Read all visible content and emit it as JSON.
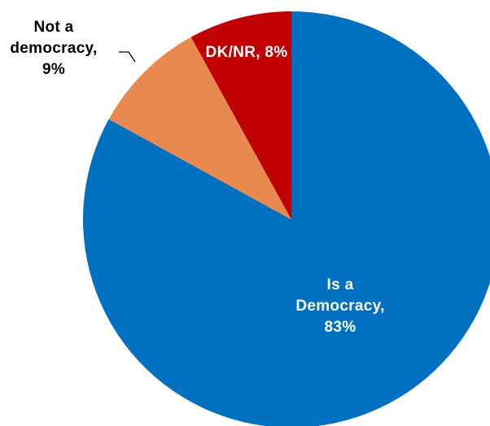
{
  "chart_data": {
    "type": "pie",
    "title": "",
    "start_angle_deg": 0,
    "direction": "clockwise",
    "slices": [
      {
        "label": "Is a Democracy",
        "value": 83,
        "color": "#0070C0",
        "label_color": "#FFFFFF",
        "label_lines": [
          "Is a",
          "Democracy,",
          "83%"
        ]
      },
      {
        "label": "Not a democracy",
        "value": 9,
        "color": "#E8894F",
        "label_color": "#000000",
        "label_lines": [
          "Not a",
          "democracy,",
          "9%"
        ]
      },
      {
        "label": "DK/NR",
        "value": 8,
        "color": "#C00000",
        "label_color": "#FFFFFF",
        "label_lines": [
          "DK/NR, 8%"
        ]
      }
    ]
  }
}
